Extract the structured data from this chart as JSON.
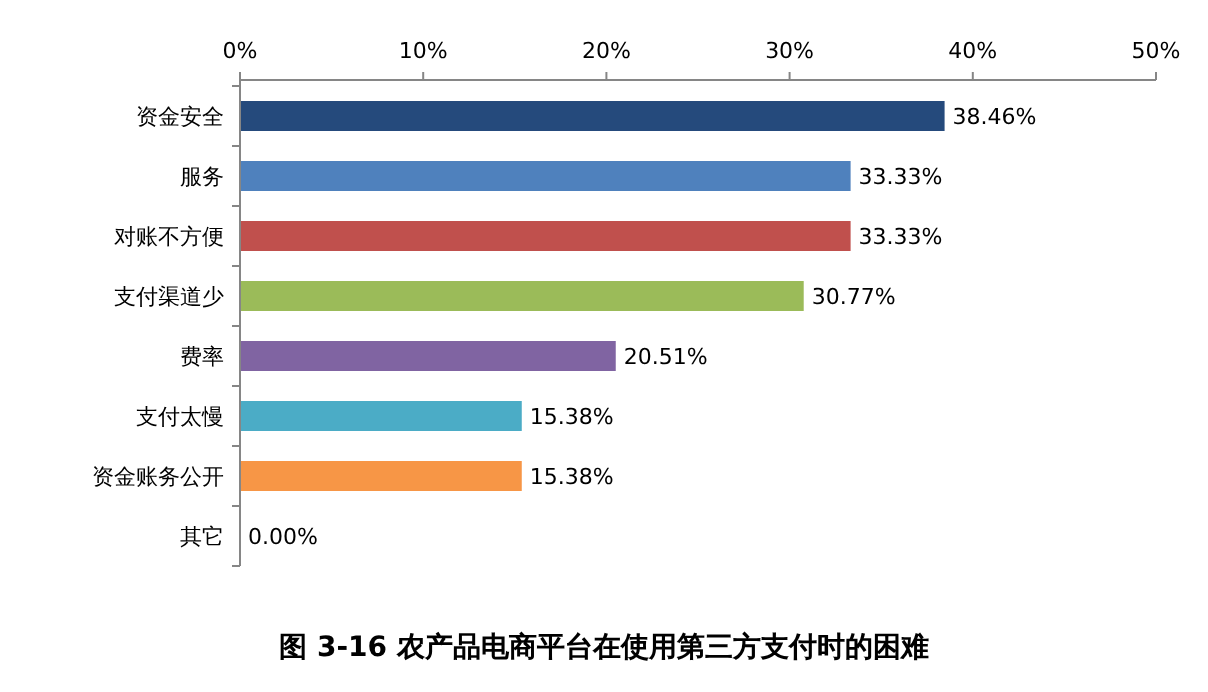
{
  "chart_data": {
    "type": "bar",
    "orientation": "horizontal",
    "title": "图 3-16 农产品电商平台在使用第三方支付时的困难",
    "categories": [
      "资金安全",
      "服务",
      "对账不方便",
      "支付渠道少",
      "费率",
      "支付太慢",
      "资金账务公开",
      "其它"
    ],
    "values": [
      38.46,
      33.33,
      33.33,
      30.77,
      20.51,
      15.38,
      15.38,
      0.0
    ],
    "colors": [
      "#254a7c",
      "#4f81bd",
      "#c0504d",
      "#9bbb59",
      "#8064a2",
      "#4bacc6",
      "#f79646",
      "#7f7f7f"
    ],
    "value_labels": [
      "38.46%",
      "33.33%",
      "33.33%",
      "30.77%",
      "20.51%",
      "15.38%",
      "15.38%",
      "0.00%"
    ],
    "xlim": [
      0,
      50
    ],
    "xticks": [
      {
        "value": 0,
        "label": "0%"
      },
      {
        "value": 10,
        "label": "10%"
      },
      {
        "value": 20,
        "label": "20%"
      },
      {
        "value": 30,
        "label": "30%"
      },
      {
        "value": 40,
        "label": "40%"
      },
      {
        "value": 50,
        "label": "50%"
      }
    ],
    "grid": false
  }
}
